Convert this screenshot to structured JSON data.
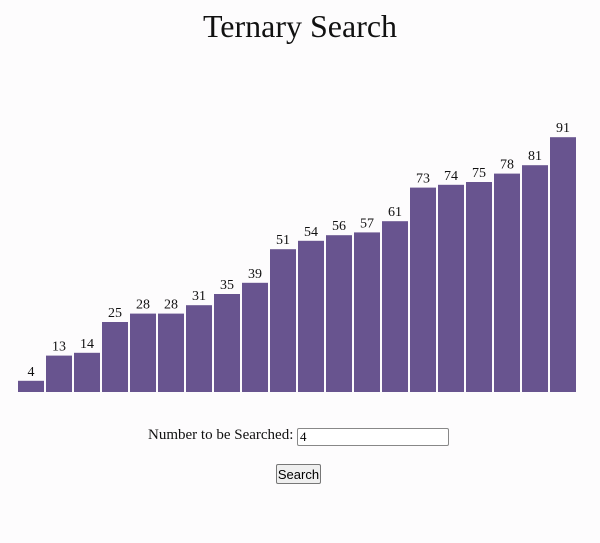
{
  "title": "Ternary Search",
  "array": {
    "values": [
      4,
      13,
      14,
      25,
      28,
      28,
      31,
      35,
      39,
      51,
      54,
      56,
      57,
      61,
      73,
      74,
      75,
      78,
      81,
      91
    ],
    "color": "#68548f"
  },
  "form": {
    "label": "Number to be Searched:",
    "input_value": "4",
    "button": "Search"
  }
}
